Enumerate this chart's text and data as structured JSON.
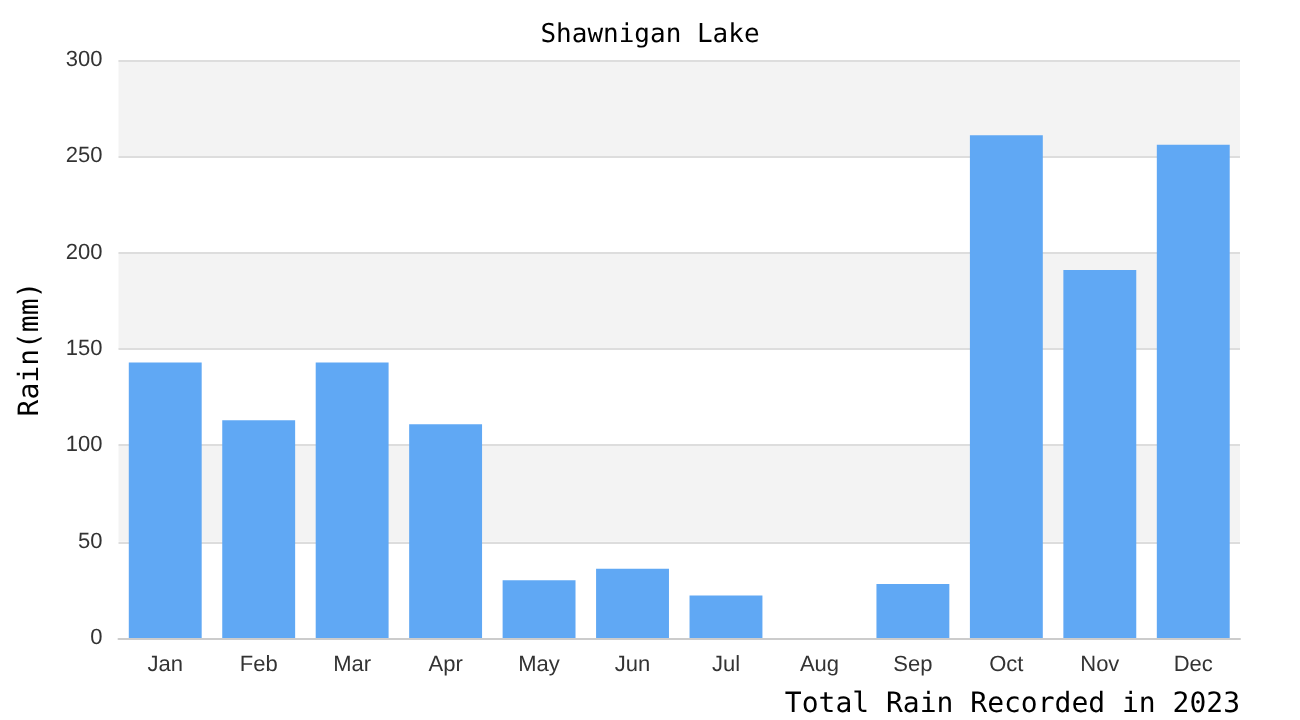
{
  "chart_data": {
    "type": "bar",
    "title": "Shawnigan Lake",
    "ylabel": "Rain(mm)",
    "xlabel": "Total Rain Recorded in 2023",
    "categories": [
      "Jan",
      "Feb",
      "Mar",
      "Apr",
      "May",
      "Jun",
      "Jul",
      "Aug",
      "Sep",
      "Oct",
      "Nov",
      "Dec"
    ],
    "values": [
      143,
      113,
      143,
      111,
      30,
      36,
      22,
      0,
      28,
      261,
      191,
      256
    ],
    "color": "#60a8f4",
    "ylim": [
      0,
      300
    ],
    "yticks": [
      0,
      50,
      100,
      150,
      200,
      250,
      300
    ],
    "grid": "y"
  }
}
